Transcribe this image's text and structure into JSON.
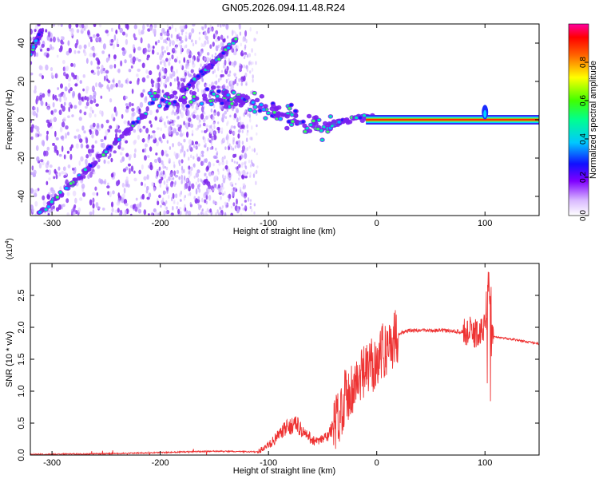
{
  "title": "GN05.2026.094.11.48.R24",
  "chart_data": [
    {
      "type": "heatmap",
      "xlabel": "Height of straight line (km)",
      "ylabel": "Frequency (Hz)",
      "xlim": [
        -320,
        150
      ],
      "ylim": [
        -50,
        50
      ],
      "xticks": [
        -300,
        -200,
        -100,
        0,
        100
      ],
      "yticks": [
        -40,
        -20,
        0,
        20,
        40
      ],
      "colorbar": {
        "label": "Normalized spectral amplitude",
        "ticks": [
          0.0,
          0.2,
          0.4,
          0.6,
          0.8
        ],
        "range": [
          0,
          1
        ]
      },
      "ridges": [
        {
          "x": [
            -315,
            -290,
            -260,
            -235,
            -210
          ],
          "y": [
            -50,
            -38,
            -22,
            -8,
            5
          ]
        },
        {
          "x": [
            -320,
            -310
          ],
          "y": [
            35,
            46
          ]
        },
        {
          "x": [
            -180,
            -150,
            -130
          ],
          "y": [
            15,
            30,
            42
          ]
        },
        {
          "x": [
            -210,
            -150,
            -110,
            -80,
            -50,
            -40,
            -20,
            0,
            150
          ],
          "y": [
            10,
            12,
            8,
            2,
            -5,
            -2,
            1,
            1,
            0
          ]
        }
      ]
    },
    {
      "type": "line",
      "xlabel": "Height of straight line (km)",
      "ylabel": "SNR (10 * v/v)",
      "yscale_label": "(x10",
      "yscale_exp": "4",
      "yscale_close": ")",
      "xlim": [
        -320,
        150
      ],
      "ylim": [
        0,
        3
      ],
      "xticks": [
        -300,
        -200,
        -100,
        0,
        100
      ],
      "yticks": [
        "0.0",
        "0.5",
        "1.0",
        "1.5",
        "2.0",
        "2.5"
      ],
      "color": "#ee3333",
      "series": [
        {
          "x": [
            -320,
            -250,
            -200,
            -150,
            -110,
            -100,
            -85,
            -75,
            -65,
            -55,
            -45,
            -35,
            -30,
            -25,
            -20,
            -10,
            0,
            10,
            20,
            30,
            40,
            60,
            80,
            95,
            100,
            103,
            106,
            110,
            130,
            150
          ],
          "y": [
            0.01,
            0.02,
            0.04,
            0.06,
            0.05,
            0.15,
            0.4,
            0.5,
            0.3,
            0.2,
            0.3,
            0.6,
            0.9,
            1.0,
            1.1,
            1.3,
            1.5,
            1.7,
            1.9,
            1.95,
            1.95,
            1.95,
            1.93,
            1.9,
            2.0,
            2.9,
            1.85,
            1.85,
            1.8,
            1.74
          ]
        }
      ]
    }
  ]
}
